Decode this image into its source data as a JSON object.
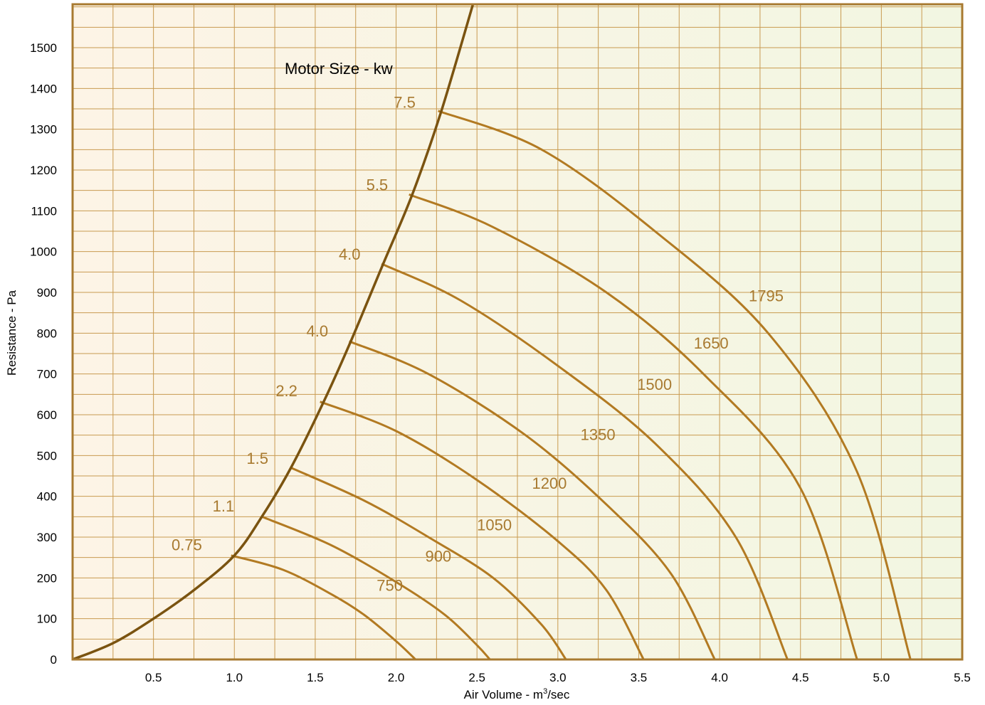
{
  "chart_data": {
    "type": "line",
    "title": "",
    "annotation": "Motor Size - kw",
    "xlabel": "Air Volume - m",
    "xlabel_sup": "3",
    "xlabel_suffix": "/sec",
    "ylabel": "Resistance - Pa",
    "xlim": [
      0,
      5.5
    ],
    "ylim": [
      0,
      1500
    ],
    "x_ticks": [
      0.5,
      1.0,
      1.5,
      2.0,
      2.5,
      3.0,
      3.5,
      4.0,
      4.5,
      5.0,
      5.5
    ],
    "x_tick_labels": [
      "0.5",
      "1.0",
      "1.5",
      "2.0",
      "2.5",
      "3.0",
      "3.5",
      "4.0",
      "4.5",
      "5.0",
      "5.5"
    ],
    "y_ticks": [
      0,
      100,
      200,
      300,
      400,
      500,
      600,
      700,
      800,
      900,
      1000,
      1100,
      1200,
      1300,
      1400,
      1500
    ],
    "y_tick_labels": [
      "0",
      "100",
      "200",
      "300",
      "400",
      "500",
      "600",
      "700",
      "800",
      "900",
      "1000",
      "1100",
      "1200",
      "1300",
      "1400",
      "1500"
    ],
    "grid": true,
    "colors": {
      "curve": "#b27a22",
      "limit": "#7a5310",
      "label": "#a87a30",
      "frame": "#a87a30",
      "grid": "#c89a50",
      "bg_left": "#fdf4e6",
      "bg_right": "#f2f6e2"
    },
    "system_curve": {
      "name": "",
      "points": [
        [
          0,
          0
        ],
        [
          0.25,
          40
        ],
        [
          0.5,
          100
        ],
        [
          0.75,
          170
        ],
        [
          1.0,
          255
        ],
        [
          1.17,
          350
        ],
        [
          1.35,
          470
        ],
        [
          1.55,
          630
        ],
        [
          1.72,
          780
        ],
        [
          1.92,
          970
        ],
        [
          2.1,
          1140
        ],
        [
          2.28,
          1345
        ],
        [
          2.5,
          1640
        ]
      ]
    },
    "fan_curves": [
      {
        "name": "750",
        "motor": "0.75",
        "start": [
          0.98,
          255
        ],
        "end_x": 2.12,
        "x": [
          0.98,
          1.3,
          1.6,
          1.8,
          2.0,
          2.12
        ],
        "y": [
          255,
          220,
          160,
          110,
          45,
          0
        ]
      },
      {
        "name": "900",
        "motor": "1.1",
        "start": [
          1.17,
          350
        ],
        "end_x": 2.58,
        "x": [
          1.17,
          1.6,
          2.0,
          2.3,
          2.5,
          2.58
        ],
        "y": [
          350,
          280,
          190,
          110,
          35,
          0
        ]
      },
      {
        "name": "1050",
        "motor": "1.5",
        "start": [
          1.35,
          470
        ],
        "end_x": 3.05,
        "x": [
          1.35,
          1.8,
          2.2,
          2.6,
          2.9,
          3.05
        ],
        "y": [
          470,
          390,
          300,
          200,
          85,
          0
        ]
      },
      {
        "name": "1200",
        "motor": "2.2",
        "start": [
          1.53,
          632
        ],
        "end_x": 3.53,
        "x": [
          1.53,
          2.0,
          2.5,
          3.0,
          3.3,
          3.53
        ],
        "y": [
          632,
          560,
          440,
          290,
          170,
          0
        ]
      },
      {
        "name": "1350",
        "motor": "4.0",
        "start": [
          1.71,
          780
        ],
        "end_x": 3.97,
        "x": [
          1.71,
          2.2,
          2.8,
          3.3,
          3.7,
          3.97
        ],
        "y": [
          780,
          700,
          550,
          380,
          210,
          0
        ]
      },
      {
        "name": "1500",
        "motor": "4.0",
        "start": [
          1.91,
          970
        ],
        "end_x": 4.42,
        "x": [
          1.91,
          2.4,
          3.0,
          3.6,
          4.1,
          4.42
        ],
        "y": [
          970,
          880,
          720,
          530,
          300,
          0
        ]
      },
      {
        "name": "1650",
        "motor": "5.5",
        "start": [
          2.08,
          1140
        ],
        "end_x": 4.85,
        "x": [
          2.08,
          2.6,
          3.3,
          3.9,
          4.5,
          4.85
        ],
        "y": [
          1140,
          1060,
          900,
          700,
          420,
          0
        ]
      },
      {
        "name": "1795",
        "motor": "7.5",
        "start": [
          2.26,
          1345
        ],
        "end_x": 5.18,
        "x": [
          2.26,
          2.9,
          3.6,
          4.3,
          4.85,
          5.18
        ],
        "y": [
          1345,
          1250,
          1050,
          800,
          460,
          0
        ]
      }
    ],
    "curve_label_positions": [
      {
        "text": "750",
        "x": 1.88,
        "y": 168
      },
      {
        "text": "900",
        "x": 2.18,
        "y": 240
      },
      {
        "text": "1050",
        "x": 2.5,
        "y": 317
      },
      {
        "text": "1200",
        "x": 2.84,
        "y": 419
      },
      {
        "text": "1350",
        "x": 3.14,
        "y": 538
      },
      {
        "text": "1500",
        "x": 3.49,
        "y": 661
      },
      {
        "text": "1650",
        "x": 3.84,
        "y": 762
      },
      {
        "text": "1795",
        "x": 4.18,
        "y": 878
      }
    ],
    "motor_label_positions": [
      {
        "text": "0.75",
        "x": 0.8,
        "y": 268
      },
      {
        "text": "1.1",
        "x": 1.0,
        "y": 363
      },
      {
        "text": "1.5",
        "x": 1.21,
        "y": 480
      },
      {
        "text": "2.2",
        "x": 1.39,
        "y": 645
      },
      {
        "text": "4.0",
        "x": 1.58,
        "y": 792
      },
      {
        "text": "4.0",
        "x": 1.78,
        "y": 980
      },
      {
        "text": "5.5",
        "x": 1.95,
        "y": 1150
      },
      {
        "text": "7.5",
        "x": 2.12,
        "y": 1353
      }
    ]
  }
}
